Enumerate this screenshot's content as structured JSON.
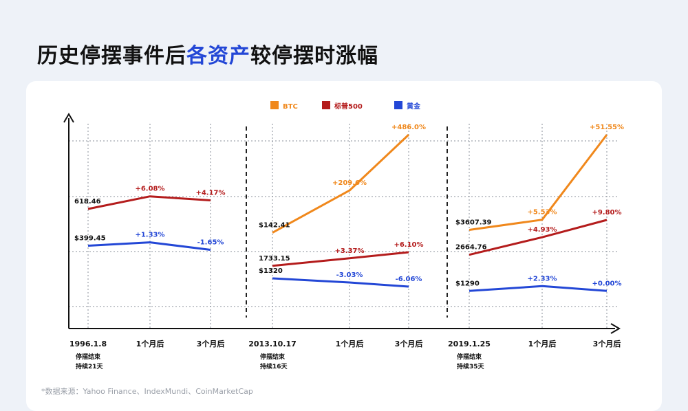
{
  "title": {
    "part1": "历史停摆事件后",
    "highlight": "各资产",
    "part2": "较停摆时涨幅"
  },
  "source": "*数据来源：Yahoo Finance、IndexMundi、CoinMarketCap",
  "colors": {
    "btc": "#f0881c",
    "sp500": "#b41c1c",
    "gold": "#2347d6",
    "highlight": "#2347d6"
  },
  "chart_data": {
    "type": "line",
    "legend": [
      {
        "key": "btc",
        "name": "BTC"
      },
      {
        "key": "sp500",
        "name": "标普500"
      },
      {
        "key": "gold",
        "name": "黄金"
      }
    ],
    "legend_position": "top-center",
    "grid": true,
    "panels": [
      {
        "x": [
          "1996.1.8",
          "1个月后",
          "3个月后"
        ],
        "note": [
          "停摆结束",
          "持续21天"
        ],
        "series": {
          "sp500": {
            "values": [
              618.46,
              656.06,
              644.25
            ],
            "labels": [
              "618.46",
              "+6.08%",
              "+4.17%"
            ]
          },
          "gold": {
            "values": [
              399.45,
              404.76,
              392.86
            ],
            "labels": [
              "$399.45",
              "+1.33%",
              "-1.65%"
            ]
          }
        }
      },
      {
        "x": [
          "2013.10.17",
          "1个月后",
          "3个月后"
        ],
        "note": [
          "停摆结束",
          "持续16天"
        ],
        "series": {
          "btc": {
            "values": [
              142.41,
              440.89,
              834.37
            ],
            "labels": [
              "$142.41",
              "+209.6%",
              "+486.0%"
            ]
          },
          "sp500": {
            "values": [
              1733.15,
              1791.56,
              1838.87
            ],
            "labels": [
              "1733.15",
              "+3.37%",
              "+6.10%"
            ]
          },
          "gold": {
            "values": [
              1320,
              1280.0,
              1240.0
            ],
            "labels": [
              "$1320",
              "-3.03%",
              "-6.06%"
            ]
          }
        }
      },
      {
        "x": [
          "2019.1.25",
          "1个月后",
          "3个月后"
        ],
        "note": [
          "停摆结束",
          "持续35天"
        ],
        "series": {
          "btc": {
            "values": [
              3607.39,
              3806.88,
              5466.58
            ],
            "labels": [
              "$3607.39",
              "+5.53%",
              "+51.55%"
            ]
          },
          "sp500": {
            "values": [
              2664.76,
              2796.13,
              2925.9
            ],
            "labels": [
              "2664.76",
              "+4.93%",
              "+9.80%"
            ]
          },
          "gold": {
            "values": [
              1290,
              1320.06,
              1290
            ],
            "labels": [
              "$1290",
              "+2.33%",
              "+0.00%"
            ]
          }
        }
      }
    ]
  }
}
